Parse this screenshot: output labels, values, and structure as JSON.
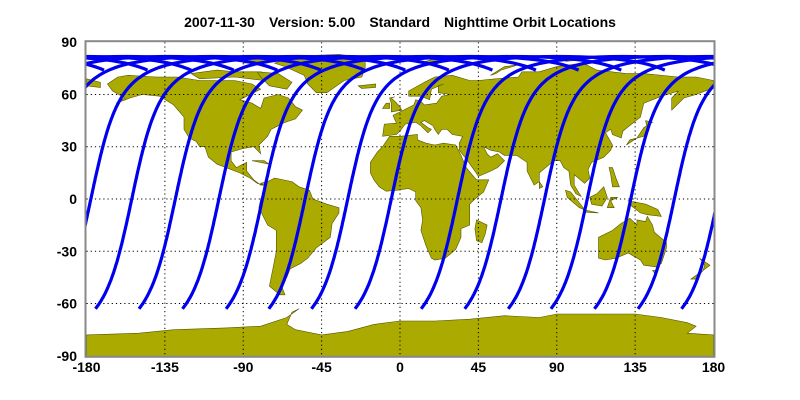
{
  "header": {
    "date": "2007-11-30",
    "version": "Version: 5.00",
    "product": "Standard",
    "title": "Nighttime Orbit Locations"
  },
  "colors": {
    "land": "#aaaa00",
    "coast": "#555500",
    "orbit": "#0000ee",
    "grid": "#000000",
    "frame": "#888888"
  },
  "chart_data": {
    "type": "map",
    "projection": "equirectangular",
    "grid": true,
    "xlim": [
      -180,
      180
    ],
    "ylim": [
      -90,
      90
    ],
    "x_ticks": [
      "-180",
      "-135",
      "-90",
      "-45",
      "0",
      "45",
      "90",
      "135",
      "180"
    ],
    "y_ticks": [
      "90",
      "60",
      "30",
      "0",
      "-30",
      "-60",
      "-90"
    ],
    "orbit_track": {
      "inclination_deg": 98.2,
      "southern_start_lat": -63,
      "max_lat": 82,
      "equator_crossing_lons": [
        -177.5,
        -154,
        -129,
        -104,
        -79,
        -54.5,
        -30,
        -5,
        33,
        58,
        83,
        107.5,
        132.5,
        157.5
      ]
    }
  }
}
